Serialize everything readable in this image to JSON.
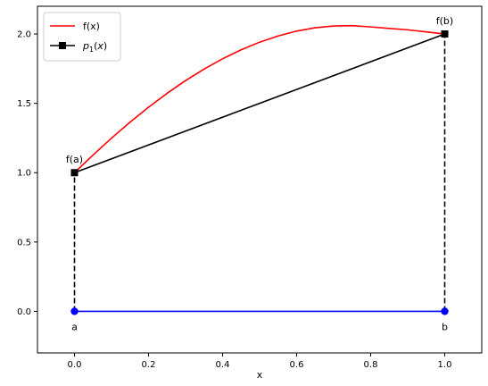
{
  "chart_data": {
    "type": "line",
    "title": "",
    "xlabel": "x",
    "ylabel": "",
    "xlim": [
      -0.1,
      1.1
    ],
    "ylim": [
      -0.3,
      2.2
    ],
    "xticks": [
      0.0,
      0.2,
      0.4,
      0.6,
      0.8,
      1.0
    ],
    "xtick_labels": [
      "0.0",
      "0.2",
      "0.4",
      "0.6",
      "0.8",
      "1.0"
    ],
    "yticks": [
      0.0,
      0.5,
      1.0,
      1.5,
      2.0
    ],
    "ytick_labels": [
      "0.0",
      "0.5",
      "1.0",
      "1.5",
      "2.0"
    ],
    "grid": false,
    "legend_position": "top-left",
    "series": [
      {
        "name": "f(x)",
        "color": "#ff0000",
        "marker": "none",
        "x": [
          0.0,
          0.05,
          0.1,
          0.15,
          0.2,
          0.25,
          0.3,
          0.35,
          0.4,
          0.45,
          0.5,
          0.55,
          0.6,
          0.65,
          0.7,
          0.75,
          0.8,
          0.85,
          0.9,
          0.95,
          1.0
        ],
        "y": [
          1.0,
          1.127,
          1.249,
          1.364,
          1.472,
          1.572,
          1.664,
          1.747,
          1.821,
          1.886,
          1.941,
          1.986,
          2.021,
          2.045,
          2.058,
          2.06,
          2.051,
          2.04,
          2.03,
          2.015,
          2.0
        ]
      },
      {
        "name": "$p_1(x)$",
        "color": "#000000",
        "marker": "square",
        "x": [
          0.0,
          1.0
        ],
        "y": [
          1.0,
          2.0
        ]
      }
    ],
    "extras": [
      {
        "role": "interval",
        "color": "#0000ff",
        "marker": "circle",
        "x": [
          0.0,
          1.0
        ],
        "y": [
          0.0,
          0.0
        ]
      },
      {
        "role": "vertical-dashed",
        "color": "#000000",
        "x": [
          0.0,
          0.0
        ],
        "y": [
          0.0,
          1.0
        ]
      },
      {
        "role": "vertical-dashed",
        "color": "#000000",
        "x": [
          1.0,
          1.0
        ],
        "y": [
          0.0,
          2.0
        ]
      }
    ],
    "annotations": [
      {
        "text": "f(a)",
        "x": 0.0,
        "y": 1.0,
        "placement": "above"
      },
      {
        "text": "f(b)",
        "x": 1.0,
        "y": 2.0,
        "placement": "above"
      },
      {
        "text": "a",
        "x": 0.0,
        "y": 0.0,
        "placement": "below"
      },
      {
        "text": "b",
        "x": 1.0,
        "y": 0.0,
        "placement": "below"
      }
    ]
  }
}
